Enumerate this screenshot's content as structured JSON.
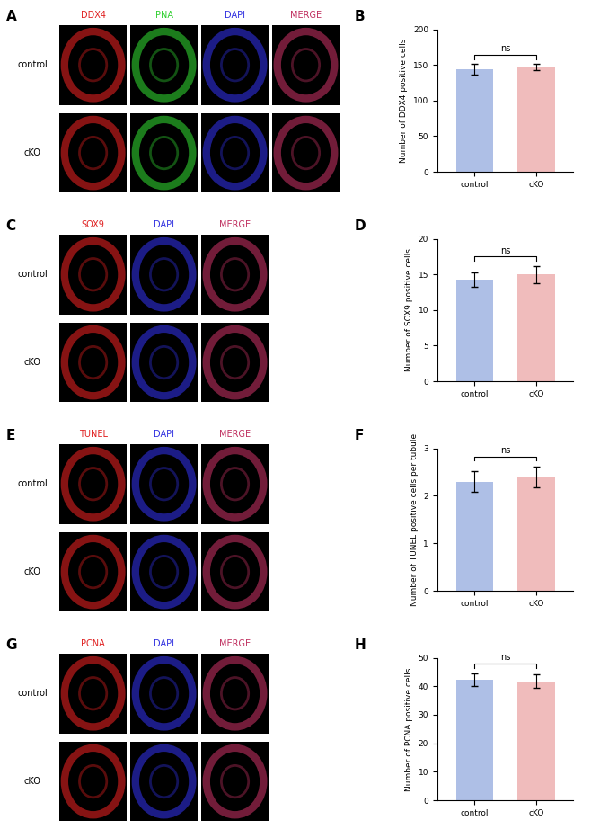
{
  "chart_data": [
    {
      "type": "bar",
      "panel": "B",
      "y_label": "Number of DDX4 positive cells",
      "categories": [
        "control",
        "cKO"
      ],
      "values": [
        144,
        147
      ],
      "errors": [
        8,
        4
      ],
      "colors": [
        "#aebfe6",
        "#f0bcbc"
      ],
      "ylim": [
        0,
        200
      ],
      "yticks": [
        0,
        50,
        100,
        150,
        200
      ],
      "annotation": "ns",
      "grid": false
    },
    {
      "type": "bar",
      "panel": "D",
      "y_label": "Number of SOX9 positive cells",
      "categories": [
        "control",
        "cKO"
      ],
      "values": [
        14.3,
        15.0
      ],
      "errors": [
        1.0,
        1.2
      ],
      "colors": [
        "#aebfe6",
        "#f0bcbc"
      ],
      "ylim": [
        0,
        20
      ],
      "yticks": [
        0,
        5,
        10,
        15,
        20
      ],
      "annotation": "ns",
      "grid": false
    },
    {
      "type": "bar",
      "panel": "F",
      "y_label": "Number of TUNEL positive cells per tubule",
      "categories": [
        "control",
        "cKO"
      ],
      "values": [
        2.3,
        2.4
      ],
      "errors": [
        0.22,
        0.22
      ],
      "colors": [
        "#aebfe6",
        "#f0bcbc"
      ],
      "ylim": [
        0,
        3
      ],
      "yticks": [
        0,
        1,
        2,
        3
      ],
      "annotation": "ns",
      "grid": false
    },
    {
      "type": "bar",
      "panel": "H",
      "y_label": "Number of PCNA positive cells",
      "categories": [
        "control",
        "cKO"
      ],
      "values": [
        42.3,
        41.8
      ],
      "errors": [
        2.2,
        2.4
      ],
      "colors": [
        "#aebfe6",
        "#f0bcbc"
      ],
      "ylim": [
        0,
        50
      ],
      "yticks": [
        0,
        10,
        20,
        30,
        40,
        50
      ],
      "annotation": "ns",
      "grid": false
    }
  ],
  "image_panels": [
    {
      "panel": "A",
      "rows": [
        "control",
        "cKO"
      ],
      "channels": [
        {
          "name": "DDX4",
          "color": "#e02020"
        },
        {
          "name": "PNA",
          "color": "#30d030"
        },
        {
          "name": "DAPI",
          "color": "#3030e0"
        },
        {
          "name": "MERGE",
          "color": "#c03060"
        }
      ]
    },
    {
      "panel": "C",
      "rows": [
        "control",
        "cKO"
      ],
      "channels": [
        {
          "name": "SOX9",
          "color": "#e02020"
        },
        {
          "name": "DAPI",
          "color": "#3030e0"
        },
        {
          "name": "MERGE",
          "color": "#c03060"
        }
      ]
    },
    {
      "panel": "E",
      "rows": [
        "control",
        "cKO"
      ],
      "channels": [
        {
          "name": "TUNEL",
          "color": "#e02020"
        },
        {
          "name": "DAPI",
          "color": "#3030e0"
        },
        {
          "name": "MERGE",
          "color": "#c03060"
        }
      ]
    },
    {
      "panel": "G",
      "rows": [
        "control",
        "cKO"
      ],
      "channels": [
        {
          "name": "PCNA",
          "color": "#e02020"
        },
        {
          "name": "DAPI",
          "color": "#3030e0"
        },
        {
          "name": "MERGE",
          "color": "#c03060"
        }
      ]
    }
  ]
}
